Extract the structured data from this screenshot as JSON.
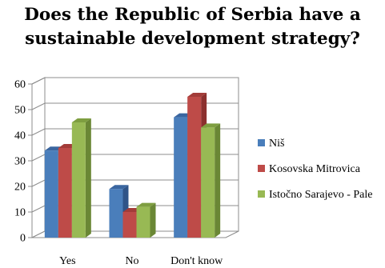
{
  "chart_data": {
    "type": "bar",
    "title_lines": [
      "Does the Republic of Serbia have a",
      "sustainable development strategy?"
    ],
    "categories": [
      "Yes",
      "No",
      "Don't know"
    ],
    "series": [
      {
        "name": "Niš",
        "color": "#4A7EBB",
        "top": "#3A66A0",
        "side": "#2F5488",
        "values": [
          34,
          19,
          47
        ]
      },
      {
        "name": "Kosovska Mitrovica",
        "color": "#BE4B48",
        "top": "#A33C39",
        "side": "#8C302E",
        "values": [
          35,
          10,
          55
        ]
      },
      {
        "name": "Istočno Sarajevo - Pale",
        "color": "#98B954",
        "top": "#7E9E40",
        "side": "#6A8735",
        "values": [
          45,
          12,
          43
        ]
      }
    ],
    "ylim": [
      0,
      60
    ],
    "yticks": [
      "0",
      "10",
      "20",
      "30",
      "40",
      "50",
      "60"
    ],
    "grid": true,
    "legend_position": "right",
    "grid_color": "#8c8c8c"
  }
}
